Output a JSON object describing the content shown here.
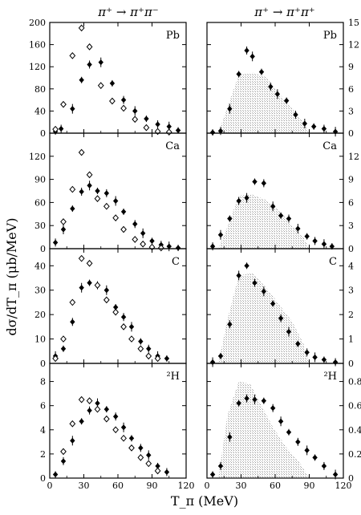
{
  "figure": {
    "column_titles": [
      "π⁺ → π⁺π⁻",
      "π⁺ → π⁺π⁺"
    ],
    "xlabel": "T_π  (MeV)",
    "ylabel": "dσ/dT_π  (μb/MeV)"
  },
  "chart_data": [
    {
      "type": "scatter",
      "panel": "Pb",
      "channel": "π⁺ → π⁺π⁻",
      "xlim": [
        0,
        120
      ],
      "ylim": [
        0,
        200
      ],
      "xticks": [
        "0",
        "30",
        "60",
        "90",
        "120"
      ],
      "yticks": [
        "0",
        "40",
        "80",
        "120",
        "160",
        "200"
      ],
      "series": [
        {
          "x": [
            5,
            10,
            20,
            28,
            35,
            45,
            55,
            65,
            75,
            85,
            95,
            105,
            113
          ],
          "y": [
            3,
            8,
            44,
            96,
            124,
            128,
            90,
            60,
            40,
            26,
            16,
            12,
            5
          ]
        },
        {
          "x": [
            5,
            12,
            20,
            28,
            35,
            45,
            55,
            65,
            75,
            85,
            95,
            105
          ],
          "y": [
            7,
            52,
            140,
            190,
            156,
            86,
            58,
            45,
            25,
            10,
            3,
            2
          ]
        }
      ]
    },
    {
      "type": "scatter",
      "panel": "Pb",
      "channel": "π⁺ → π⁺π⁺",
      "xlim": [
        0,
        120
      ],
      "ylim": [
        0,
        15
      ],
      "xticks": [
        "0",
        "30",
        "60",
        "90",
        "120"
      ],
      "yticks": [
        "0",
        "3",
        "6",
        "9",
        "12",
        "15"
      ],
      "series": [
        {
          "x": [
            5,
            12,
            20,
            28,
            35,
            40,
            48,
            56,
            62,
            70,
            78,
            86,
            94,
            103,
            113
          ],
          "y": [
            0.1,
            0.3,
            3.3,
            8.0,
            11.2,
            10.4,
            8.3,
            6.3,
            5.3,
            4.4,
            2.5,
            1.3,
            0.9,
            0.6,
            0.2
          ]
        }
      ]
    },
    {
      "type": "scatter",
      "panel": "Ca",
      "channel": "π⁺ → π⁺π⁻",
      "xlim": [
        0,
        120
      ],
      "ylim": [
        0,
        150
      ],
      "xticks": [
        "0",
        "30",
        "60",
        "90",
        "120"
      ],
      "yticks": [
        "0",
        "30",
        "60",
        "90",
        "120"
      ],
      "series": [
        {
          "x": [
            5,
            12,
            20,
            28,
            35,
            42,
            50,
            58,
            65,
            75,
            82,
            90,
            98,
            105,
            113
          ],
          "y": [
            8,
            25,
            52,
            74,
            82,
            75,
            72,
            62,
            48,
            32,
            20,
            10,
            5,
            3,
            1
          ]
        },
        {
          "x": [
            12,
            20,
            28,
            35,
            42,
            50,
            58,
            65,
            75,
            82,
            90,
            98
          ],
          "y": [
            35,
            77,
            125,
            96,
            65,
            55,
            40,
            25,
            12,
            6,
            2,
            1
          ]
        }
      ]
    },
    {
      "type": "scatter",
      "panel": "Ca",
      "channel": "π⁺ → π⁺π⁺",
      "xlim": [
        0,
        120
      ],
      "ylim": [
        0,
        15
      ],
      "xticks": [
        "0",
        "30",
        "60",
        "90",
        "120"
      ],
      "yticks": [
        "0",
        "3",
        "6",
        "9",
        "12"
      ],
      "series": [
        {
          "x": [
            5,
            12,
            20,
            28,
            35,
            42,
            50,
            58,
            65,
            72,
            80,
            88,
            95,
            103,
            110
          ],
          "y": [
            0.3,
            1.8,
            3.9,
            6.2,
            6.6,
            8.7,
            8.5,
            5.5,
            4.3,
            3.9,
            2.6,
            1.6,
            1.0,
            0.6,
            0.3
          ]
        }
      ]
    },
    {
      "type": "scatter",
      "panel": "C",
      "channel": "π⁺ → π⁺π⁻",
      "xlim": [
        0,
        120
      ],
      "ylim": [
        0,
        47
      ],
      "xticks": [
        "0",
        "30",
        "60",
        "90",
        "120"
      ],
      "yticks": [
        "0",
        "10",
        "20",
        "30",
        "40"
      ],
      "series": [
        {
          "x": [
            5,
            12,
            20,
            28,
            35,
            42,
            50,
            58,
            65,
            72,
            80,
            87,
            95,
            103
          ],
          "y": [
            3,
            6,
            17,
            31,
            33,
            32,
            30,
            23,
            19,
            15,
            9,
            6,
            3,
            2
          ]
        },
        {
          "x": [
            5,
            12,
            20,
            28,
            35,
            42,
            50,
            58,
            65,
            72,
            80,
            87,
            95
          ],
          "y": [
            2,
            10,
            25,
            43,
            41,
            32,
            26,
            21,
            15,
            10,
            6,
            3,
            2
          ]
        }
      ]
    },
    {
      "type": "scatter",
      "panel": "C",
      "channel": "π⁺ → π⁺π⁺",
      "xlim": [
        0,
        120
      ],
      "ylim": [
        0,
        4.7
      ],
      "xticks": [
        "0",
        "30",
        "60",
        "90",
        "120"
      ],
      "yticks": [
        "0",
        "1",
        "2",
        "3",
        "4"
      ],
      "series": [
        {
          "x": [
            5,
            12,
            20,
            28,
            35,
            42,
            50,
            58,
            65,
            72,
            80,
            88,
            95,
            103,
            113
          ],
          "y": [
            0.05,
            0.3,
            1.6,
            3.6,
            4.0,
            3.3,
            2.95,
            2.45,
            1.85,
            1.3,
            0.8,
            0.45,
            0.25,
            0.15,
            0.05
          ]
        }
      ]
    },
    {
      "type": "scatter",
      "panel": "²H",
      "channel": "π⁺ → π⁺π⁻",
      "xlim": [
        0,
        120
      ],
      "ylim": [
        0,
        9.5
      ],
      "xticks": [
        "0",
        "30",
        "60",
        "90",
        "120"
      ],
      "yticks": [
        "0",
        "2",
        "4",
        "6",
        "8"
      ],
      "series": [
        {
          "x": [
            5,
            12,
            20,
            28,
            35,
            42,
            50,
            58,
            65,
            72,
            80,
            87,
            95,
            103
          ],
          "y": [
            0.3,
            1.4,
            3.1,
            4.7,
            5.6,
            6.2,
            5.7,
            5.1,
            4.2,
            3.3,
            2.5,
            1.9,
            1.0,
            0.5
          ]
        },
        {
          "x": [
            12,
            20,
            28,
            35,
            42,
            50,
            58,
            65,
            72,
            80,
            87,
            95
          ],
          "y": [
            2.2,
            4.5,
            6.5,
            6.4,
            5.7,
            4.9,
            4.0,
            3.3,
            2.5,
            1.7,
            1.2,
            0.6
          ]
        }
      ]
    },
    {
      "type": "scatter",
      "panel": "²H",
      "channel": "π⁺ → π⁺π⁺",
      "xlim": [
        0,
        120
      ],
      "ylim": [
        0,
        0.95
      ],
      "xticks": [
        "0",
        "30",
        "60",
        "90",
        "120"
      ],
      "yticks": [
        "0",
        "0.2",
        "0.4",
        "0.6",
        "0.8"
      ],
      "series": [
        {
          "x": [
            5,
            12,
            20,
            28,
            35,
            42,
            50,
            58,
            65,
            72,
            80,
            88,
            95,
            103,
            113
          ],
          "y": [
            0.03,
            0.1,
            0.34,
            0.62,
            0.66,
            0.65,
            0.64,
            0.58,
            0.47,
            0.38,
            0.3,
            0.23,
            0.17,
            0.1,
            0.03
          ]
        }
      ]
    }
  ]
}
